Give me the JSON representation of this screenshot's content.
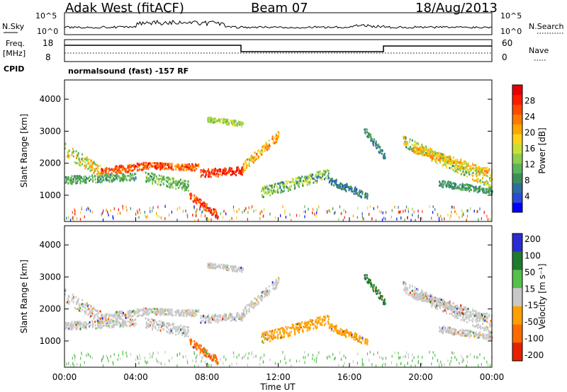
{
  "header": {
    "station": "Adak West (fitACF)",
    "beam": "Beam 07",
    "date": "18/Aug/2013"
  },
  "strips": {
    "nsky_label": "N.Sky",
    "nsky_ticks": [
      "10^5",
      "10^0"
    ],
    "nsearch_label": "N.Search",
    "nsearch_ticks": [
      "10^5",
      "10^0"
    ],
    "freq_label_1": "Freq.",
    "freq_label_2": "[MHz]",
    "freq_ticks": [
      "18",
      "8"
    ],
    "nave_label": "Nave",
    "nave_ticks": [
      "60",
      "0"
    ],
    "cpid_label": "CPID",
    "cpid_text": "normalsound (fast) -157 RF"
  },
  "colors": {
    "power_scale": [
      "#0000ff",
      "#2a4bd7",
      "#2e6e9e",
      "#3a8f5a",
      "#5bb35a",
      "#8fcf4a",
      "#c8e032",
      "#ffd21a",
      "#ffa500",
      "#ff7a00",
      "#ff4a00",
      "#ff1a00",
      "#e60000"
    ],
    "velocity_scale": [
      "#2b2bd6",
      "#1f7a2e",
      "#55c04a",
      "#c8c8c8",
      "#ffa000",
      "#ff6a00",
      "#e62000"
    ]
  },
  "chart_data": [
    {
      "type": "heatmap",
      "name": "power",
      "ylabel": "Slant Range [km]",
      "yticks": [
        1000,
        2000,
        3000,
        4000
      ],
      "ylim": [
        180,
        4600
      ],
      "colorbar_label": "Power [dB]",
      "colorbar_ticks": [
        4,
        8,
        12,
        16,
        20,
        24,
        28
      ],
      "colorbar_range": [
        0,
        32
      ]
    },
    {
      "type": "heatmap",
      "name": "velocity",
      "ylabel": "Slant Range [km]",
      "yticks": [
        1000,
        2000,
        3000,
        4000
      ],
      "ylim": [
        180,
        4600
      ],
      "colorbar_label": "Velocity [m s⁻¹]",
      "colorbar_ticks": [
        "200",
        "100",
        "50",
        "15",
        "-15",
        "-50",
        "-100",
        "-200"
      ]
    }
  ],
  "time_axis": {
    "xlabel": "Time UT",
    "ticks": [
      "00:00",
      "04:00",
      "08:00",
      "12:00",
      "16:00",
      "20:00",
      "00:00"
    ],
    "range_hours": [
      0,
      24
    ]
  }
}
